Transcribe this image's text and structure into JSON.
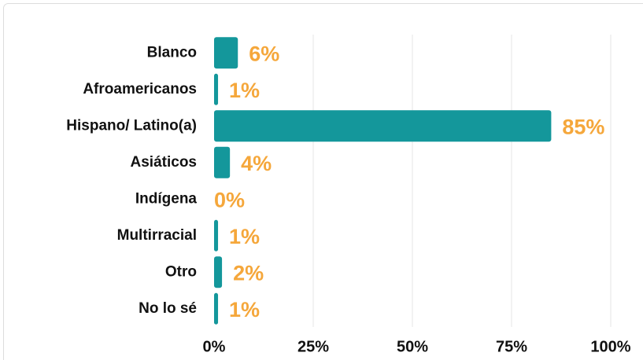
{
  "chart_data": {
    "type": "bar",
    "orientation": "horizontal",
    "categories": [
      "Blanco",
      "Afroamericanos",
      "Hispano/ Latino(a)",
      "Asiáticos",
      "Indígena",
      "Multirracial",
      "Otro",
      "No lo sé"
    ],
    "values": [
      6,
      1,
      85,
      4,
      0,
      1,
      2,
      1
    ],
    "value_labels": [
      "6%",
      "1%",
      "85%",
      "4%",
      "0%",
      "1%",
      "2%",
      "1%"
    ],
    "color": "#14979b",
    "label_color": "#f5a73b",
    "xlim": [
      0,
      100
    ],
    "xticks": [
      {
        "value": 0,
        "label": "0%"
      },
      {
        "value": 25,
        "label": "25%"
      },
      {
        "value": 50,
        "label": "50%"
      },
      {
        "value": 75,
        "label": "75%"
      },
      {
        "value": 100,
        "label": "100%"
      }
    ],
    "grid": true
  }
}
